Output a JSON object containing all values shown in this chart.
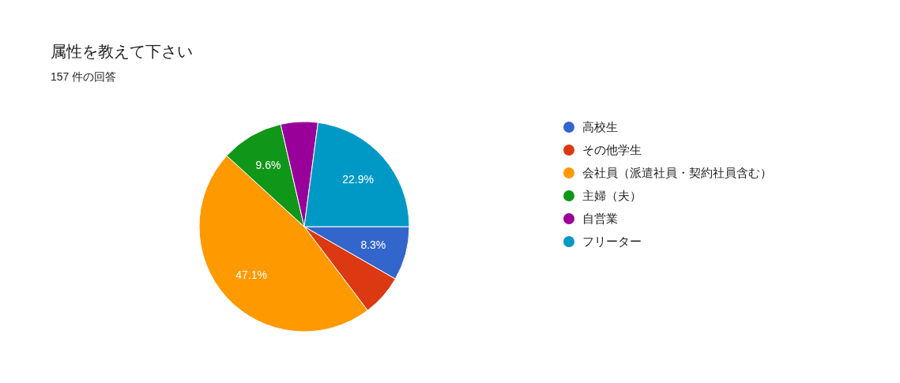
{
  "chart_data": {
    "type": "pie",
    "title": "属性を教えて下さい",
    "subtitle": "157 件の回答",
    "categories": [
      "高校生",
      "その他学生",
      "会社員（派遣社員・契約社員含む）",
      "主婦（夫）",
      "自営業",
      "フリーター"
    ],
    "values": [
      8.3,
      6.4,
      47.1,
      9.6,
      5.7,
      22.9
    ],
    "colors": [
      "#3366cc",
      "#dc3912",
      "#ff9900",
      "#109618",
      "#990099",
      "#0099c6"
    ],
    "value_labels": [
      "8.3%",
      null,
      "47.1%",
      "9.6%",
      null,
      "22.9%"
    ],
    "legend": "right"
  }
}
